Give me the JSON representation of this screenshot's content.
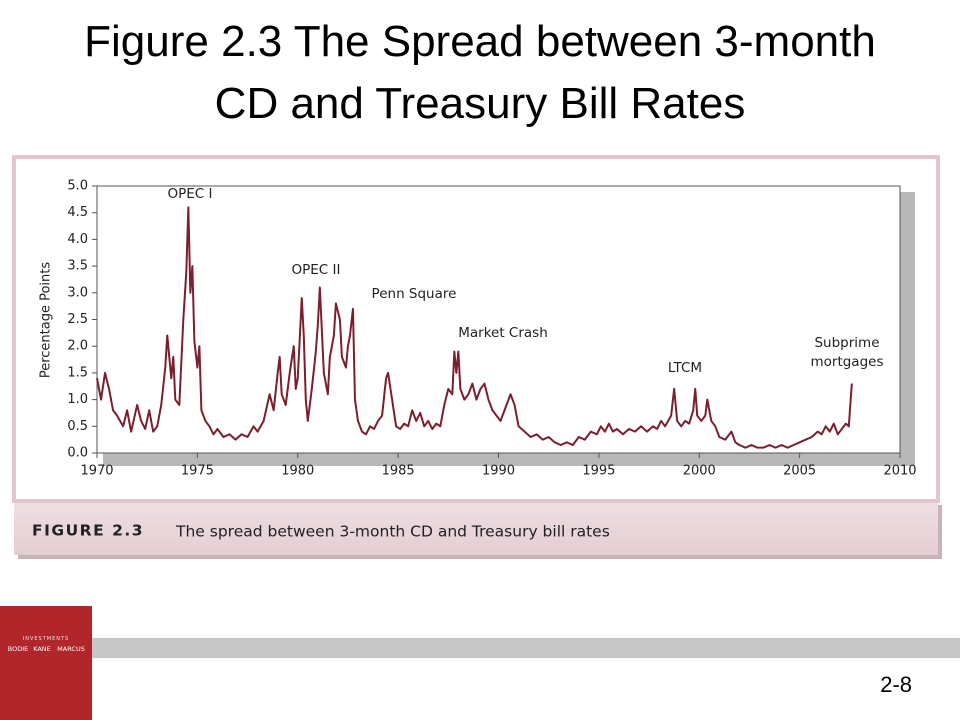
{
  "slide": {
    "title": [
      "Figure 2.3 The Spread between 3-month",
      "CD and Treasury Bill Rates"
    ],
    "caption_label": "FIGURE 2.3",
    "caption": "The spread between 3-month CD and Treasury bill rates",
    "logo": {
      "series": "INVESTMENTS",
      "authors": [
        "BODIE",
        "KANE",
        "MARCUS"
      ]
    },
    "page_number": "2-8"
  },
  "chart_data": {
    "type": "line",
    "ylabel": "Percentage Points",
    "color": "#7a1f2e",
    "annotations": [
      "OPEC I",
      "OPEC II",
      "Penn Square",
      "Market Crash",
      "LTCM",
      [
        "Subprime",
        "mortgages"
      ]
    ],
    "xlim": [
      1970,
      2010
    ],
    "xticks": [
      1970,
      1975,
      1980,
      1985,
      1990,
      1995,
      2000,
      2005,
      2010
    ],
    "ylim": [
      0,
      5
    ],
    "yticks": [
      {
        "value": 0,
        "label": "0.0"
      },
      0.5,
      {
        "value": 1,
        "label": "1.0"
      },
      1.5,
      {
        "value": 2,
        "label": "2.0"
      },
      2.5,
      {
        "value": 3,
        "label": "3.0"
      },
      3.5,
      {
        "value": 4,
        "label": "4.0"
      },
      4.5,
      {
        "value": 5,
        "label": "5.0"
      }
    ],
    "x": [
      1970,
      1970.2,
      1970.4,
      1970.6,
      1970.8,
      1971,
      1971.3,
      1971.5,
      1971.7,
      1972,
      1972.2,
      1972.4,
      1972.6,
      1972.8,
      1973,
      1973.2,
      1973.4,
      1973.5,
      1973.6,
      1973.7,
      1973.8,
      1973.9,
      1974.1,
      1974.3,
      1974.45,
      1974.55,
      1974.65,
      1974.75,
      1974.85,
      1975,
      1975.1,
      1975.2,
      1975.4,
      1975.6,
      1975.8,
      1976,
      1976.3,
      1976.6,
      1976.9,
      1977.2,
      1977.5,
      1977.8,
      1978,
      1978.3,
      1978.6,
      1978.8,
      1979,
      1979.1,
      1979.2,
      1979.4,
      1979.6,
      1979.8,
      1979.9,
      1980,
      1980.2,
      1980.3,
      1980.4,
      1980.5,
      1980.7,
      1980.9,
      1981,
      1981.1,
      1981.3,
      1981.5,
      1981.6,
      1981.8,
      1981.9,
      1982.1,
      1982.2,
      1982.4,
      1982.5,
      1982.6,
      1982.75,
      1982.85,
      1983,
      1983.2,
      1983.4,
      1983.6,
      1983.8,
      1984,
      1984.2,
      1984.4,
      1984.5,
      1984.7,
      1984.9,
      1985.1,
      1985.3,
      1985.5,
      1985.7,
      1985.9,
      1986.1,
      1986.3,
      1986.5,
      1986.7,
      1986.9,
      1987.1,
      1987.3,
      1987.5,
      1987.7,
      1987.8,
      1987.9,
      1988,
      1988.1,
      1988.3,
      1988.5,
      1988.7,
      1988.9,
      1989.1,
      1989.3,
      1989.5,
      1989.7,
      1989.9,
      1990.1,
      1990.3,
      1990.6,
      1990.8,
      1991,
      1991.3,
      1991.6,
      1991.9,
      1992.2,
      1992.5,
      1992.8,
      1993.1,
      1993.4,
      1993.7,
      1994,
      1994.3,
      1994.6,
      1994.9,
      1995.1,
      1995.3,
      1995.5,
      1995.7,
      1995.9,
      1996.2,
      1996.5,
      1996.8,
      1997.1,
      1997.4,
      1997.7,
      1997.9,
      1998.1,
      1998.3,
      1998.6,
      1998.75,
      1998.9,
      1999.1,
      1999.3,
      1999.5,
      1999.7,
      1999.8,
      1999.9,
      2000.1,
      2000.3,
      2000.4,
      2000.6,
      2000.8,
      2001,
      2001.3,
      2001.6,
      2001.8,
      2002,
      2002.3,
      2002.6,
      2002.9,
      2003.2,
      2003.5,
      2003.8,
      2004.1,
      2004.4,
      2004.7,
      2005,
      2005.3,
      2005.6,
      2005.9,
      2006.1,
      2006.3,
      2006.5,
      2006.7,
      2006.9,
      2007.1,
      2007.3,
      2007.45,
      2007.6
    ],
    "values": [
      1.4,
      1.0,
      1.5,
      1.2,
      0.8,
      0.7,
      0.5,
      0.8,
      0.4,
      0.9,
      0.6,
      0.45,
      0.8,
      0.4,
      0.5,
      0.9,
      1.6,
      2.2,
      1.8,
      1.4,
      1.8,
      1.0,
      0.9,
      2.5,
      3.4,
      4.6,
      3.0,
      3.5,
      2.1,
      1.6,
      2.0,
      0.8,
      0.6,
      0.5,
      0.35,
      0.45,
      0.3,
      0.35,
      0.25,
      0.35,
      0.3,
      0.5,
      0.4,
      0.6,
      1.1,
      0.8,
      1.5,
      1.8,
      1.1,
      0.9,
      1.5,
      2.0,
      1.2,
      1.4,
      2.9,
      2.2,
      1.0,
      0.6,
      1.2,
      1.9,
      2.4,
      3.1,
      1.5,
      1.1,
      1.8,
      2.2,
      2.8,
      2.5,
      1.8,
      1.6,
      2.0,
      2.2,
      2.7,
      1.0,
      0.6,
      0.4,
      0.35,
      0.5,
      0.45,
      0.6,
      0.7,
      1.4,
      1.5,
      1.0,
      0.5,
      0.45,
      0.55,
      0.5,
      0.8,
      0.6,
      0.75,
      0.5,
      0.6,
      0.45,
      0.55,
      0.5,
      0.9,
      1.2,
      1.1,
      1.9,
      1.5,
      1.9,
      1.2,
      1.0,
      1.1,
      1.3,
      1.0,
      1.2,
      1.3,
      1.0,
      0.8,
      0.7,
      0.6,
      0.8,
      1.1,
      0.9,
      0.5,
      0.4,
      0.3,
      0.35,
      0.25,
      0.3,
      0.2,
      0.15,
      0.2,
      0.15,
      0.3,
      0.25,
      0.4,
      0.35,
      0.5,
      0.4,
      0.55,
      0.4,
      0.45,
      0.35,
      0.45,
      0.4,
      0.5,
      0.4,
      0.5,
      0.45,
      0.6,
      0.5,
      0.7,
      1.2,
      0.6,
      0.5,
      0.6,
      0.55,
      0.8,
      1.2,
      0.7,
      0.6,
      0.7,
      1.0,
      0.6,
      0.5,
      0.3,
      0.25,
      0.4,
      0.2,
      0.15,
      0.1,
      0.15,
      0.1,
      0.1,
      0.15,
      0.1,
      0.15,
      0.1,
      0.15,
      0.2,
      0.25,
      0.3,
      0.4,
      0.35,
      0.5,
      0.4,
      0.55,
      0.35,
      0.45,
      0.55,
      0.5,
      1.3
    ]
  }
}
